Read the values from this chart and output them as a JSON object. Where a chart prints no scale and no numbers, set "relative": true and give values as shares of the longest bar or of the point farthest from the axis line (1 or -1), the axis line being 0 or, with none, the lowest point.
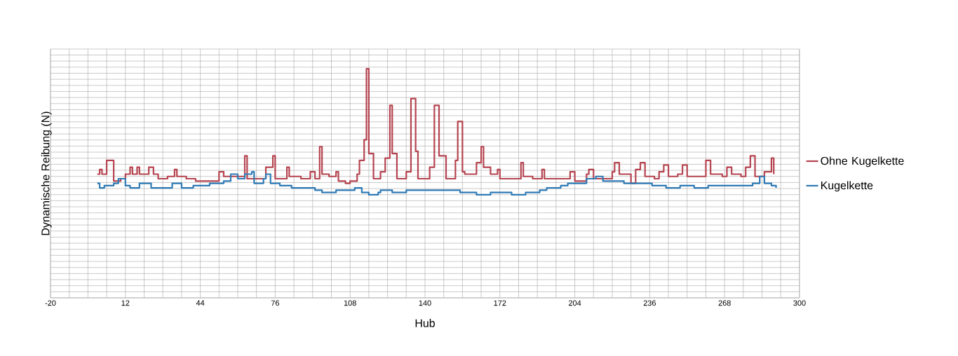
{
  "chart_data": {
    "type": "step",
    "xlabel": "Hub",
    "ylabel": "Dynamische Reibung (N)",
    "relative": true,
    "xlim": [
      -20,
      300
    ],
    "xticks": [
      -20,
      12,
      44,
      76,
      108,
      140,
      172,
      204,
      236,
      268,
      300
    ],
    "grid": true,
    "legend": "right",
    "marker": "none",
    "line_style": "solid",
    "series": [
      {
        "name": "Ohne Kugelkette",
        "color": "#b5434f",
        "x": [
          0,
          1,
          2,
          4,
          6,
          7,
          10,
          12,
          14,
          15,
          17,
          18,
          22,
          24,
          26,
          30,
          33,
          34,
          38,
          42,
          48,
          52,
          54,
          59,
          63,
          64,
          68,
          72,
          75,
          76,
          79,
          81,
          82,
          87,
          91,
          93,
          95,
          96,
          99,
          102,
          103,
          106,
          108,
          111,
          112,
          114,
          115,
          116,
          118,
          121,
          123,
          125,
          126,
          128,
          132,
          134,
          136,
          137,
          142,
          144,
          146,
          149,
          153,
          154,
          156,
          157,
          162,
          164,
          165,
          168,
          171,
          172,
          177,
          181,
          182,
          186,
          190,
          191,
          195,
          200,
          202,
          204,
          209,
          210,
          212,
          216,
          220,
          221,
          223,
          228,
          230,
          232,
          234,
          238,
          240,
          242,
          244,
          248,
          250,
          252,
          257,
          260,
          262,
          267,
          269,
          271,
          275,
          277,
          279,
          281,
          285,
          288,
          289
        ],
        "values": [
          0.54,
          0.56,
          0.54,
          0.6,
          0.6,
          0.51,
          0.52,
          0.54,
          0.57,
          0.54,
          0.57,
          0.54,
          0.57,
          0.54,
          0.52,
          0.53,
          0.56,
          0.53,
          0.52,
          0.51,
          0.51,
          0.55,
          0.53,
          0.53,
          0.62,
          0.52,
          0.52,
          0.57,
          0.62,
          0.52,
          0.52,
          0.57,
          0.53,
          0.52,
          0.55,
          0.52,
          0.66,
          0.54,
          0.53,
          0.55,
          0.51,
          0.5,
          0.51,
          0.54,
          0.6,
          0.69,
          1,
          0.63,
          0.52,
          0.55,
          0.61,
          0.84,
          0.63,
          0.52,
          0.55,
          0.87,
          0.64,
          0.52,
          0.57,
          0.84,
          0.62,
          0.52,
          0.6,
          0.77,
          0.55,
          0.54,
          0.59,
          0.66,
          0.57,
          0.54,
          0.56,
          0.52,
          0.52,
          0.59,
          0.53,
          0.52,
          0.56,
          0.52,
          0.52,
          0.52,
          0.55,
          0.51,
          0.54,
          0.56,
          0.52,
          0.52,
          0.55,
          0.59,
          0.54,
          0.5,
          0.56,
          0.59,
          0.53,
          0.52,
          0.55,
          0.58,
          0.53,
          0.54,
          0.58,
          0.53,
          0.53,
          0.6,
          0.54,
          0.53,
          0.57,
          0.54,
          0.53,
          0.57,
          0.62,
          0.53,
          0.55,
          0.61,
          0.54
        ]
      },
      {
        "name": "Kugelkette",
        "color": "#2e7ab5",
        "x": [
          0,
          1,
          3,
          7,
          9,
          12,
          14,
          18,
          21,
          23,
          27,
          32,
          36,
          41,
          48,
          54,
          57,
          60,
          63,
          66,
          67,
          71,
          72,
          74,
          78,
          83,
          87,
          93,
          96,
          102,
          108,
          110,
          113,
          116,
          120,
          121,
          126,
          132,
          138,
          144,
          149,
          155,
          162,
          168,
          174,
          177,
          183,
          189,
          192,
          198,
          201,
          206,
          209,
          213,
          216,
          221,
          225,
          230,
          233,
          237,
          243,
          249,
          255,
          261,
          267,
          272,
          276,
          280,
          283,
          285,
          288,
          290
        ],
        "values": [
          0.5,
          0.48,
          0.49,
          0.5,
          0.52,
          0.49,
          0.48,
          0.5,
          0.5,
          0.48,
          0.48,
          0.5,
          0.48,
          0.49,
          0.5,
          0.51,
          0.54,
          0.52,
          0.54,
          0.55,
          0.5,
          0.52,
          0.54,
          0.5,
          0.49,
          0.48,
          0.48,
          0.47,
          0.46,
          0.47,
          0.47,
          0.48,
          0.46,
          0.45,
          0.46,
          0.47,
          0.46,
          0.47,
          0.47,
          0.47,
          0.47,
          0.46,
          0.45,
          0.46,
          0.46,
          0.45,
          0.46,
          0.47,
          0.48,
          0.49,
          0.5,
          0.5,
          0.52,
          0.53,
          0.51,
          0.51,
          0.5,
          0.5,
          0.5,
          0.49,
          0.48,
          0.49,
          0.48,
          0.49,
          0.49,
          0.49,
          0.49,
          0.5,
          0.53,
          0.5,
          0.49,
          0.48
        ]
      }
    ]
  }
}
